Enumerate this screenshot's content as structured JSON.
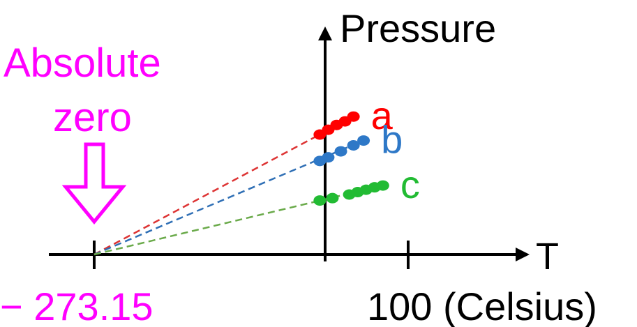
{
  "labels": {
    "y_axis": "Pressure",
    "x_axis": "T",
    "annotation_line1": "Absolute",
    "annotation_line2": "zero",
    "tick_left": "− 273.15",
    "tick_right": "100 (Celsius)"
  },
  "colors": {
    "axis": "#000000",
    "annotation": "#ff00ff",
    "a": "#ff0000",
    "b": "#2e78c7",
    "c": "#22bb33",
    "a_dash": "#dd3333",
    "b_dash": "#2f6fb5",
    "c_dash": "#6aaa4a"
  },
  "chart_data": {
    "type": "line",
    "x_range": [
      -273.15,
      100
    ],
    "zero_point": -273.15,
    "series": [
      {
        "name": "a",
        "x": [
          -5,
          5,
          15,
          25,
          35
        ],
        "y": [
          1.0,
          1.04,
          1.08,
          1.11,
          1.15
        ]
      },
      {
        "name": "b",
        "x": [
          -5,
          5,
          20,
          35,
          47
        ],
        "y": [
          0.78,
          0.81,
          0.86,
          0.91,
          0.95
        ]
      },
      {
        "name": "c",
        "x": [
          -5,
          10,
          30,
          40,
          50,
          60,
          70
        ],
        "y": [
          0.45,
          0.47,
          0.5,
          0.52,
          0.54,
          0.56,
          0.575
        ]
      }
    ]
  }
}
